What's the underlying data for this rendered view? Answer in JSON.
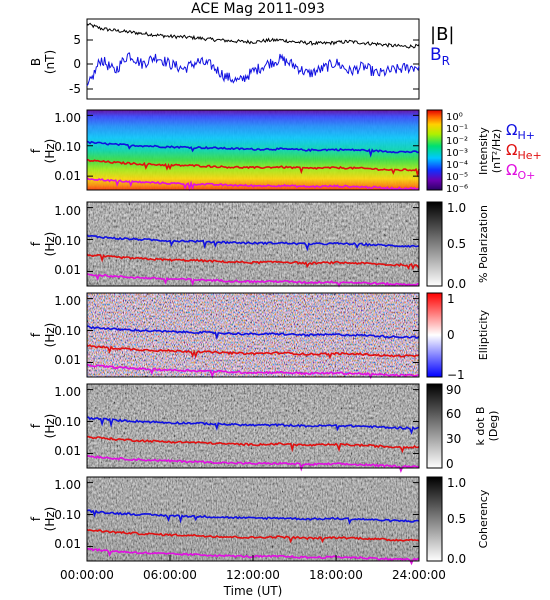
{
  "title": "ACE Mag 2011-093",
  "x_axis": {
    "label": "Time (UT)",
    "ticks": [
      "00:00:00",
      "06:00:00",
      "12:00:00",
      "18:00:00",
      "24:00:00"
    ],
    "range_hours": [
      0,
      24
    ]
  },
  "panels": [
    {
      "id": "b",
      "type": "line",
      "ylabel": "B",
      "yunits": "(nT)",
      "ylim": [
        -6.5,
        9.5
      ],
      "yticks": [
        "5",
        "0",
        "-5"
      ],
      "legend": [
        {
          "text": "|B|",
          "color": "#000000"
        },
        {
          "text": "B",
          "sub": "R",
          "color": "#1010e0"
        }
      ]
    },
    {
      "id": "intensity",
      "type": "heatmap",
      "ylabel": "f",
      "yunits": "(Hz)",
      "yticks": [
        "1.00",
        "0.10",
        "0.01"
      ],
      "colorbar": {
        "title": "Intensity",
        "units": "(nT²/Hz)",
        "ticks": [
          "10⁰",
          "10⁻¹",
          "10⁻²",
          "10⁻³",
          "10⁻⁴",
          "10⁻⁵",
          "10⁻⁶"
        ]
      },
      "legend": [
        {
          "text": "Ω",
          "sub": "H+",
          "color": "#1010e0"
        },
        {
          "text": "Ω",
          "sub": "He+",
          "color": "#e01010"
        },
        {
          "text": "Ω",
          "sub": "O+",
          "color": "#e010e0"
        }
      ]
    },
    {
      "id": "polarization",
      "type": "heatmap",
      "ylabel": "f",
      "yunits": "(Hz)",
      "yticks": [
        "1.00",
        "0.10",
        "0.01"
      ],
      "colorbar": {
        "title": "% Polarization",
        "units": "",
        "ticks": [
          "1.0",
          "0.5",
          "0.0"
        ]
      }
    },
    {
      "id": "ellipticity",
      "type": "heatmap",
      "ylabel": "f",
      "yunits": "(Hz)",
      "yticks": [
        "1.00",
        "0.10",
        "0.01"
      ],
      "colorbar": {
        "title": "Ellipticity",
        "units": "",
        "ticks": [
          "1",
          "0",
          "−1"
        ]
      }
    },
    {
      "id": "kdotb",
      "type": "heatmap",
      "ylabel": "f",
      "yunits": "(Hz)",
      "yticks": [
        "1.00",
        "0.10",
        "0.01"
      ],
      "colorbar": {
        "title": "k dot B",
        "units": "(Deg)",
        "ticks": [
          "90",
          "60",
          "30",
          "0"
        ]
      }
    },
    {
      "id": "coherency",
      "type": "heatmap",
      "ylabel": "f",
      "yunits": "(Hz)",
      "yticks": [
        "1.00",
        "0.10",
        "0.01"
      ],
      "colorbar": {
        "title": "Coherency",
        "units": "",
        "ticks": [
          "1.0",
          "0.5",
          "0.0"
        ]
      }
    }
  ],
  "chart_data": {
    "type": "line",
    "title": "ACE Mag 2011-093",
    "xlabel": "Time (UT)",
    "xlim_hours": [
      0,
      24
    ],
    "ylabel": "B (nT)",
    "ylim": [
      -6.5,
      9.5
    ],
    "x": [
      0,
      1,
      2,
      3,
      4,
      5,
      6,
      7,
      8,
      9,
      10,
      11,
      12,
      13,
      14,
      15,
      16,
      17,
      18,
      19,
      20,
      21,
      22,
      23,
      24
    ],
    "series": [
      {
        "name": "|B|",
        "color": "#000000",
        "values": [
          8.5,
          7.6,
          7.2,
          6.9,
          6.6,
          6.3,
          6.0,
          5.9,
          5.7,
          5.4,
          5.2,
          5.0,
          4.9,
          5.2,
          5.3,
          4.9,
          4.7,
          4.6,
          4.8,
          5.0,
          4.7,
          4.5,
          4.2,
          4.0,
          4.1
        ]
      },
      {
        "name": "Bᵣ",
        "color": "#1010e0",
        "values": [
          -4.5,
          1.5,
          -1.0,
          2.5,
          0.5,
          2.0,
          0.5,
          -0.5,
          1.0,
          0.2,
          -2.0,
          -3.0,
          -1.0,
          0.5,
          1.5,
          0.2,
          -1.5,
          -0.5,
          0.8,
          -1.0,
          0.0,
          -1.5,
          -0.8,
          -0.3,
          0.0
        ]
      }
    ],
    "cyclotron_frequencies_hz": {
      "x": [
        0,
        2,
        4,
        6,
        8,
        10,
        12,
        14,
        16,
        18,
        20,
        22,
        24
      ],
      "series": [
        {
          "name": "ΩH+",
          "color": "#1010e0",
          "values": [
            0.13,
            0.11,
            0.1,
            0.092,
            0.088,
            0.082,
            0.077,
            0.078,
            0.072,
            0.075,
            0.071,
            0.064,
            0.062
          ]
        },
        {
          "name": "ΩHe+",
          "color": "#e01010",
          "values": [
            0.033,
            0.028,
            0.025,
            0.023,
            0.022,
            0.02,
            0.019,
            0.02,
            0.018,
            0.019,
            0.018,
            0.016,
            0.016
          ]
        },
        {
          "name": "ΩO+",
          "color": "#e010e0",
          "values": [
            0.0083,
            0.007,
            0.0063,
            0.0058,
            0.0055,
            0.0051,
            0.0048,
            0.0049,
            0.0045,
            0.0047,
            0.0044,
            0.004,
            0.0039
          ]
        }
      ]
    },
    "frequency_axis": {
      "scale": "log",
      "ylim_hz": [
        0.0035,
        1.5
      ],
      "ticks_hz": [
        1.0,
        0.1,
        0.01
      ]
    }
  }
}
